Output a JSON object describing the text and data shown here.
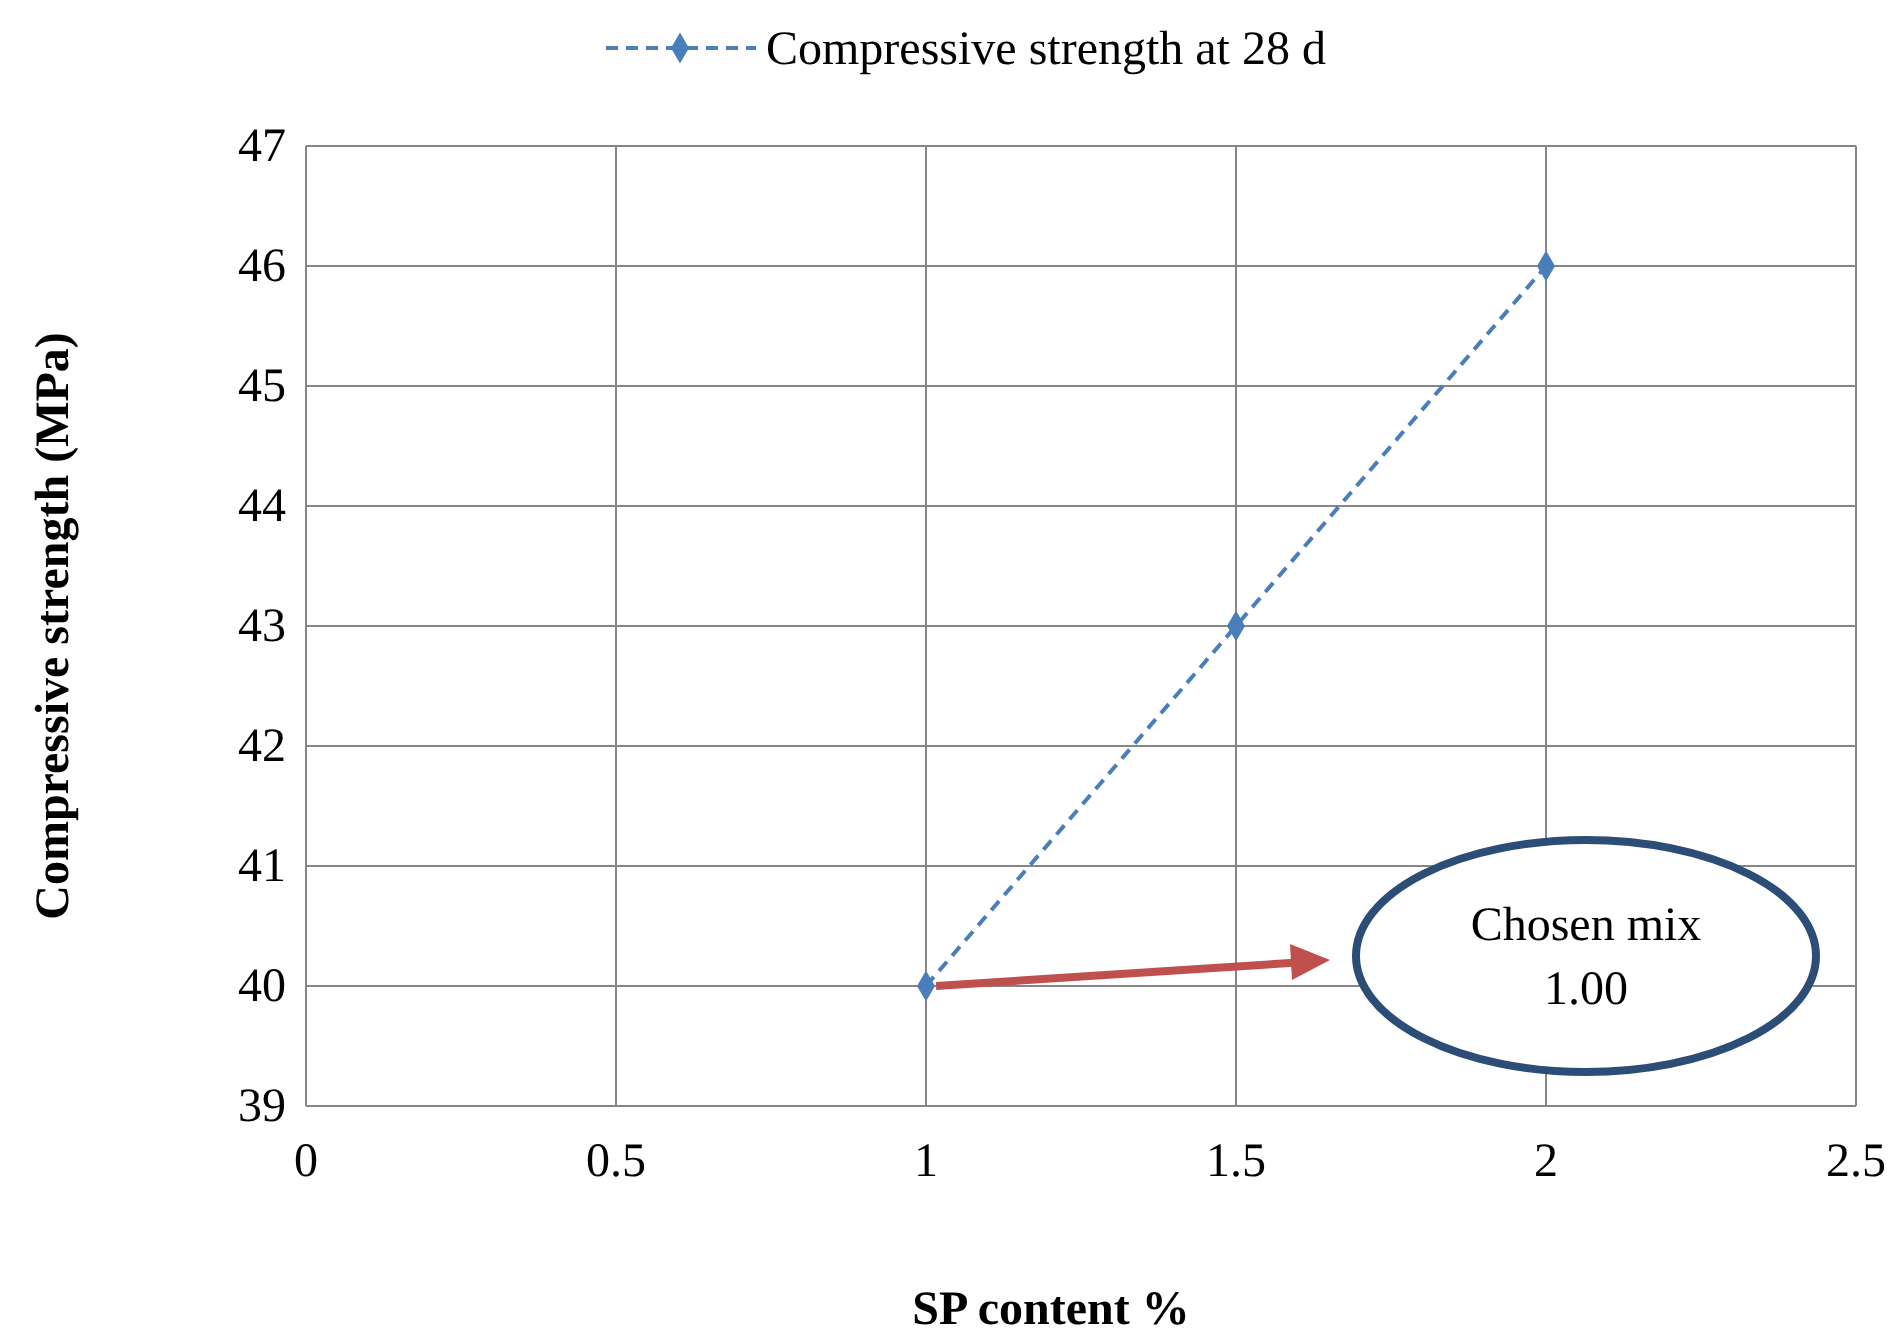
{
  "chart_data": {
    "type": "line",
    "xlabel": "SP content  %",
    "ylabel": "Compressive strength (MPa)",
    "x": [
      1,
      1.5,
      2
    ],
    "series": [
      {
        "name": "Compressive strength  at 28 d",
        "color": "#4a7ebb",
        "values": [
          40,
          43,
          46
        ]
      }
    ],
    "xlim": [
      0,
      2.5
    ],
    "xticks": [
      0,
      0.5,
      1,
      1.5,
      2,
      2.5
    ],
    "ylim": [
      39,
      47
    ],
    "yticks": [
      39,
      40,
      41,
      42,
      43,
      44,
      45,
      46,
      47
    ],
    "grid": true,
    "legend": "top",
    "marker": "diamond",
    "line_style": "dashed",
    "annotations": [
      "Chosen mix\n1.00"
    ]
  }
}
